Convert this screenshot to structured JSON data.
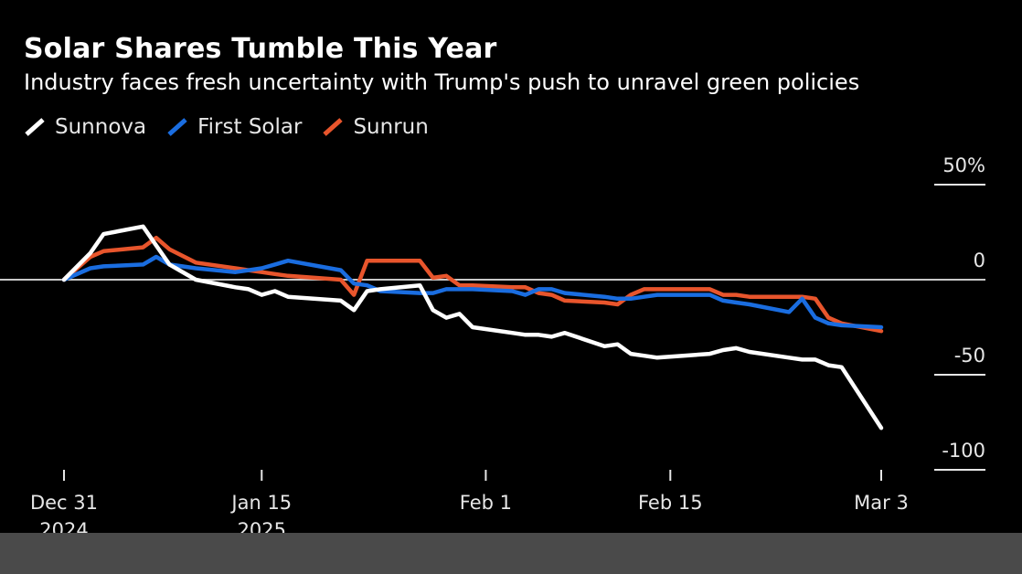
{
  "header": {
    "title": "Solar Shares Tumble This Year",
    "subtitle": "Industry faces fresh uncertainty with Trump's push to unravel green policies"
  },
  "colors": {
    "background": "#000000",
    "sunnova": "#ffffff",
    "first_solar": "#1a6de0",
    "sunrun": "#e8552c",
    "zero_line": "#c8c8c8"
  },
  "chart_data": {
    "type": "line",
    "title": "Solar Shares Tumble This Year",
    "subtitle": "Industry faces fresh uncertainty with Trump's push to unravel green policies",
    "xlabel": "",
    "ylabel": "",
    "ylim": [
      -100,
      50
    ],
    "y_axis_position": "right",
    "grid": false,
    "legend_placement": "top-left",
    "y_ticks": [
      {
        "value": 50,
        "label": "50%"
      },
      {
        "value": 0,
        "label": "0"
      },
      {
        "value": -50,
        "label": "-50"
      },
      {
        "value": -100,
        "label": "-100"
      }
    ],
    "x_ticks": [
      {
        "date": "2024-12-31",
        "label": [
          "Dec 31",
          "2024"
        ]
      },
      {
        "date": "2025-01-15",
        "label": [
          "Jan 15",
          "2025"
        ]
      },
      {
        "date": "2025-02-01",
        "label": [
          "Feb 1"
        ]
      },
      {
        "date": "2025-02-15",
        "label": [
          "Feb 15"
        ]
      },
      {
        "date": "2025-03-03",
        "label": [
          "Mar 3"
        ]
      }
    ],
    "x": [
      "2024-12-31",
      "2025-01-02",
      "2025-01-03",
      "2025-01-06",
      "2025-01-07",
      "2025-01-08",
      "2025-01-10",
      "2025-01-13",
      "2025-01-14",
      "2025-01-15",
      "2025-01-16",
      "2025-01-17",
      "2025-01-21",
      "2025-01-22",
      "2025-01-23",
      "2025-01-24",
      "2025-01-27",
      "2025-01-28",
      "2025-01-29",
      "2025-01-30",
      "2025-01-31",
      "2025-02-03",
      "2025-02-04",
      "2025-02-05",
      "2025-02-06",
      "2025-02-07",
      "2025-02-10",
      "2025-02-11",
      "2025-02-12",
      "2025-02-13",
      "2025-02-14",
      "2025-02-18",
      "2025-02-19",
      "2025-02-20",
      "2025-02-21",
      "2025-02-24",
      "2025-02-25",
      "2025-02-26",
      "2025-02-27",
      "2025-02-28",
      "2025-03-03"
    ],
    "series": [
      {
        "name": "Sunnova",
        "color": "#ffffff",
        "values": [
          0,
          14,
          24,
          28,
          18,
          8,
          0,
          -4,
          -5,
          -8,
          -6,
          -9,
          -11,
          -16,
          -6,
          -5,
          -3,
          -16,
          -20,
          -18,
          -25,
          -28,
          -29,
          -29,
          -30,
          -28,
          -35,
          -34,
          -39,
          -40,
          -41,
          -39,
          -37,
          -36,
          -38,
          -41,
          -42,
          -42,
          -45,
          -46,
          -78
        ]
      },
      {
        "name": "First Solar",
        "color": "#1a6de0",
        "values": [
          0,
          6,
          7,
          8,
          12,
          8,
          6,
          4,
          5,
          6,
          8,
          10,
          5,
          -2,
          -3,
          -6,
          -7,
          -7,
          -5,
          -5,
          -5,
          -6,
          -8,
          -5,
          -5,
          -7,
          -9,
          -10,
          -10,
          -9,
          -8,
          -8,
          -11,
          -12,
          -13,
          -17,
          -10,
          -20,
          -23,
          -24,
          -25
        ]
      },
      {
        "name": "Sunrun",
        "color": "#e8552c",
        "values": [
          0,
          12,
          15,
          17,
          22,
          16,
          9,
          6,
          5,
          4,
          3,
          2,
          0,
          -8,
          10,
          10,
          10,
          1,
          2,
          -3,
          -3,
          -4,
          -4,
          -7,
          -8,
          -11,
          -12,
          -13,
          -8,
          -5,
          -5,
          -5,
          -8,
          -8,
          -9,
          -9,
          -9,
          -10,
          -20,
          -23,
          -27
        ]
      }
    ]
  }
}
